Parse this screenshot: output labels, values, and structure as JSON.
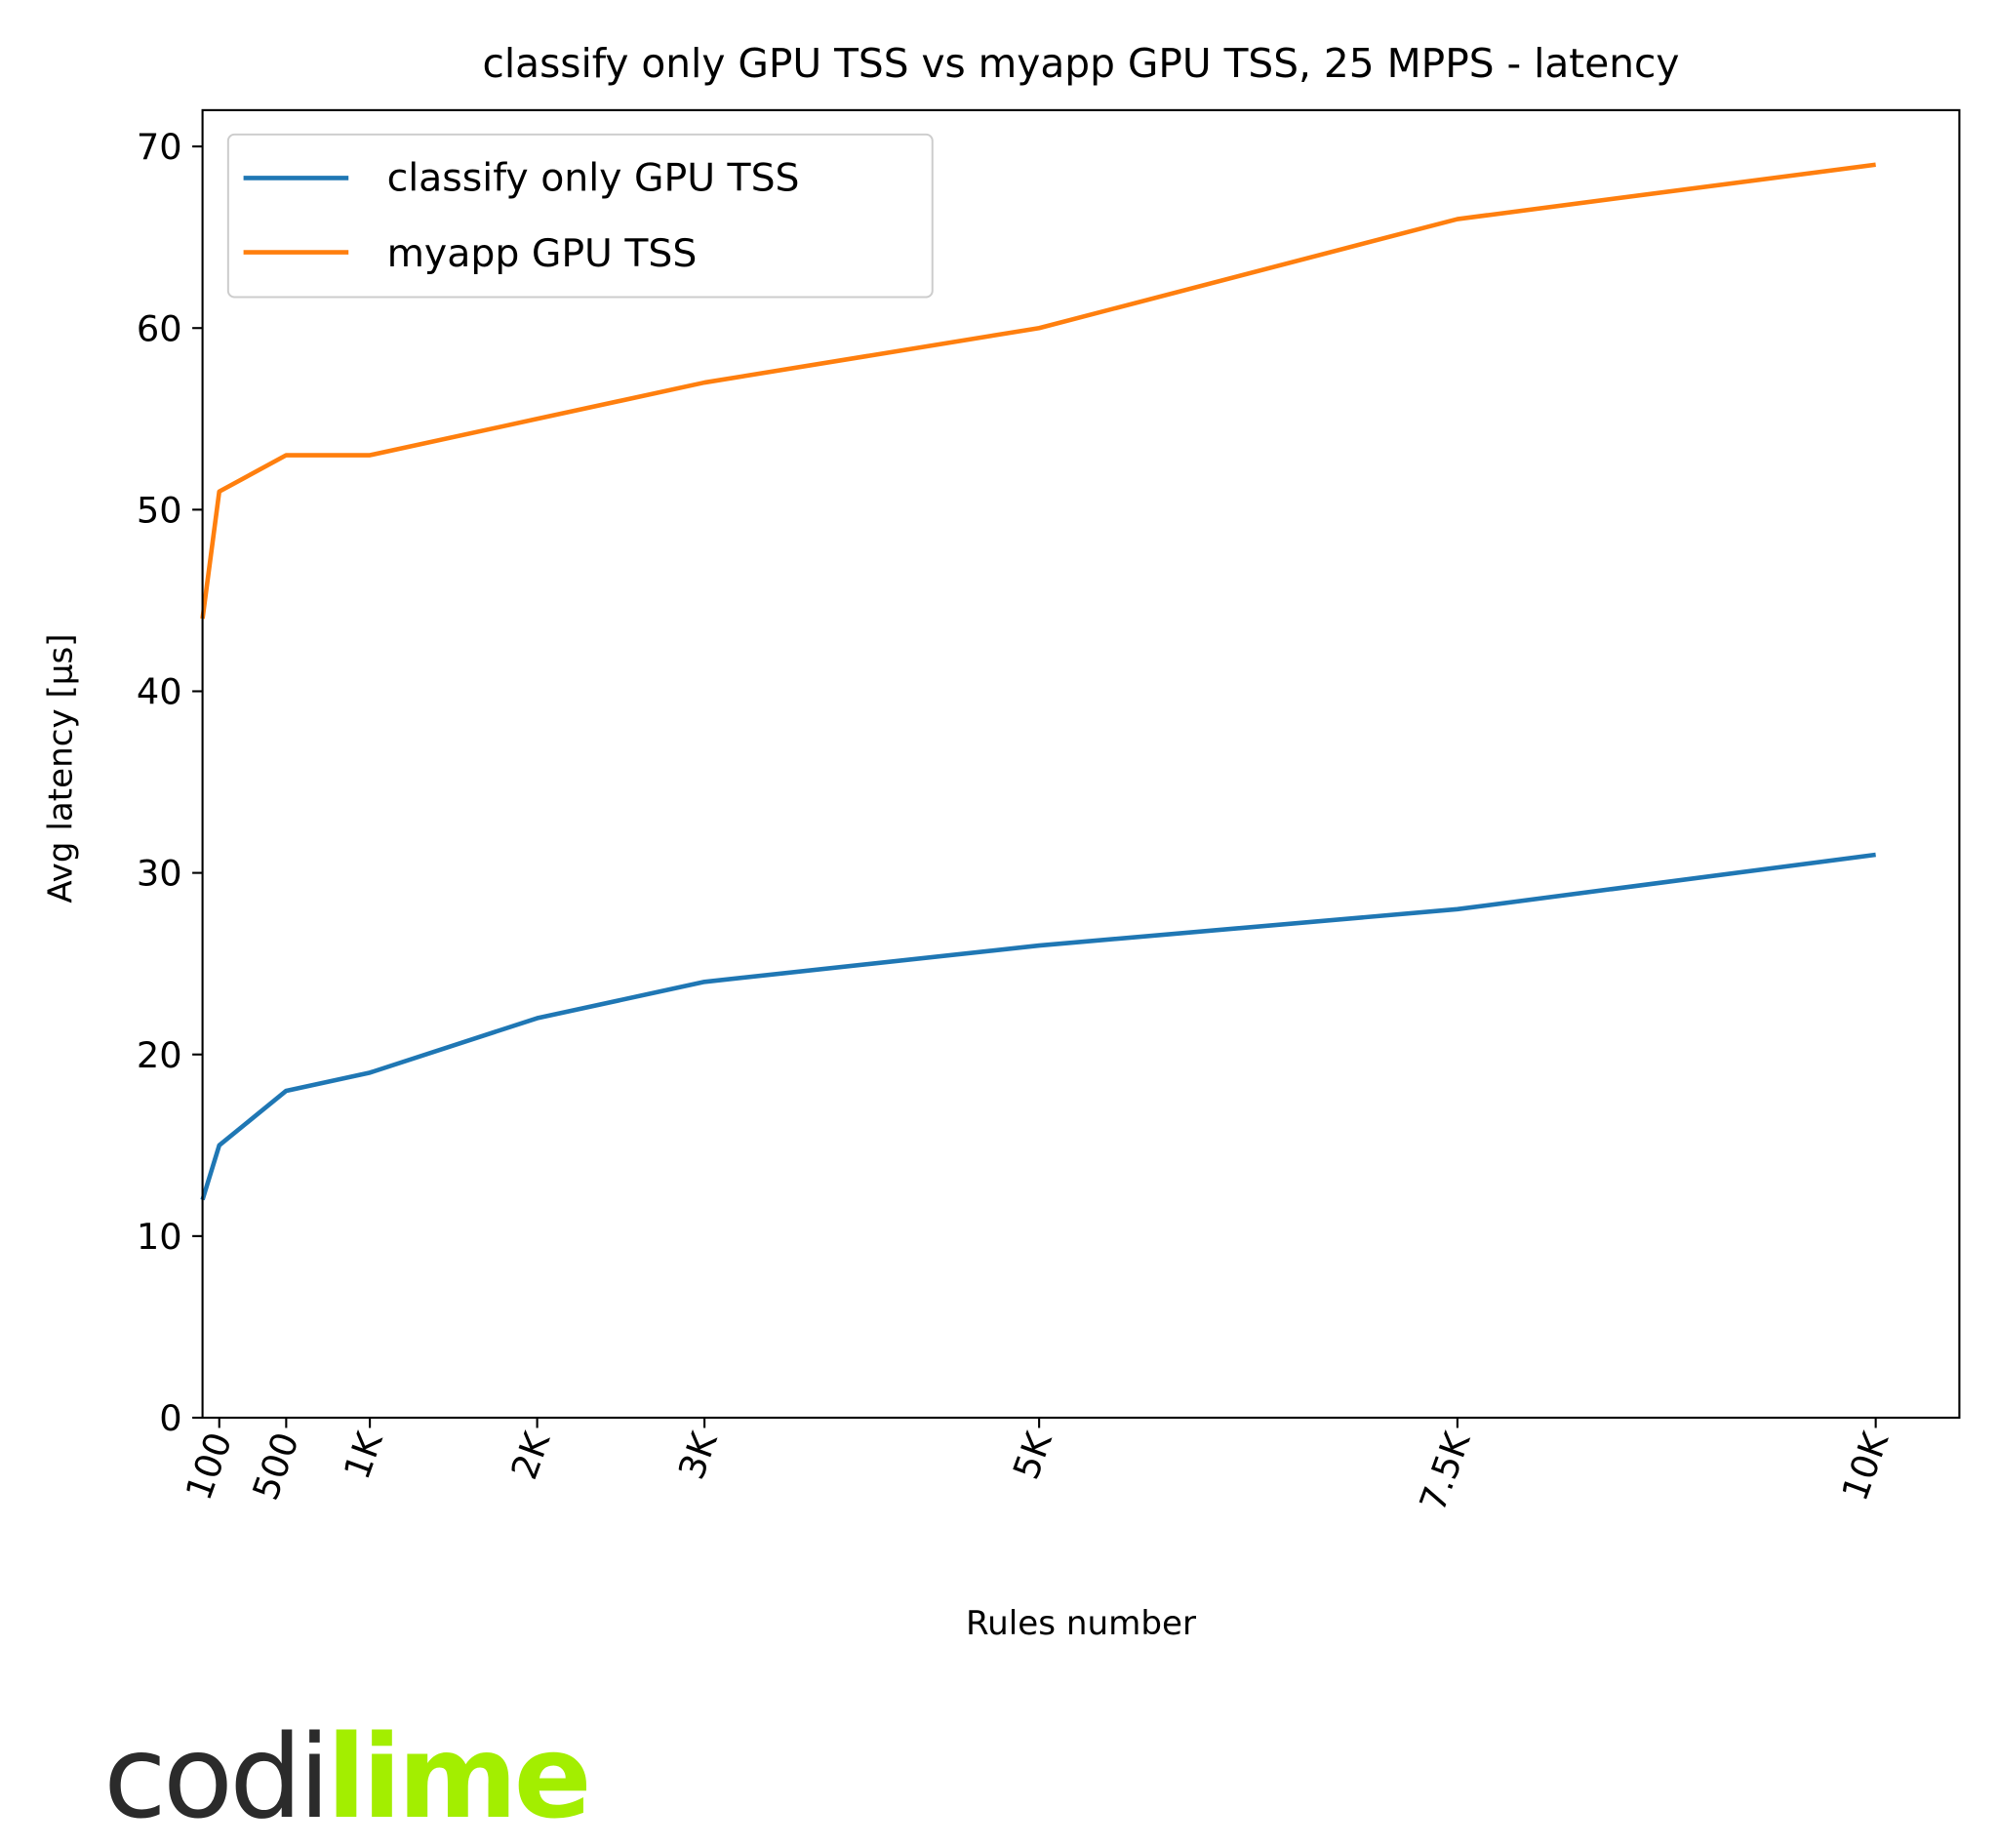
{
  "chart_data": {
    "type": "line",
    "title": "classify only GPU TSS vs myapp GPU TSS, 25 MPPS - latency",
    "xlabel": "Rules number",
    "ylabel": "Avg latency [µs]",
    "x": [
      0,
      100,
      500,
      1000,
      2000,
      3000,
      5000,
      7500,
      10000
    ],
    "xticks": [
      100,
      500,
      1000,
      2000,
      3000,
      5000,
      7500,
      10000
    ],
    "xtick_labels": [
      "100",
      "500",
      "1K",
      "2K",
      "3K",
      "5K",
      "7.5K",
      "10K"
    ],
    "yticks": [
      0,
      10,
      20,
      30,
      40,
      50,
      60,
      70
    ],
    "ytick_labels": [
      "0",
      "10",
      "20",
      "30",
      "40",
      "50",
      "60",
      "70"
    ],
    "xlim": [
      0,
      10500
    ],
    "ylim": [
      0,
      72
    ],
    "grid": false,
    "legend_position": "top-left",
    "series": [
      {
        "name": "classify only GPU TSS",
        "color": "#1f77b4",
        "values": [
          12,
          15,
          18,
          19,
          22,
          24,
          26,
          28,
          31
        ]
      },
      {
        "name": "myapp GPU TSS",
        "color": "#ff7f0e",
        "values": [
          44,
          51,
          53,
          53,
          55,
          57,
          60,
          66,
          69
        ]
      }
    ]
  },
  "logo": {
    "part1": "codi",
    "part2": "lime",
    "colors": [
      "#2b2b2b",
      "#a3ee00"
    ]
  }
}
